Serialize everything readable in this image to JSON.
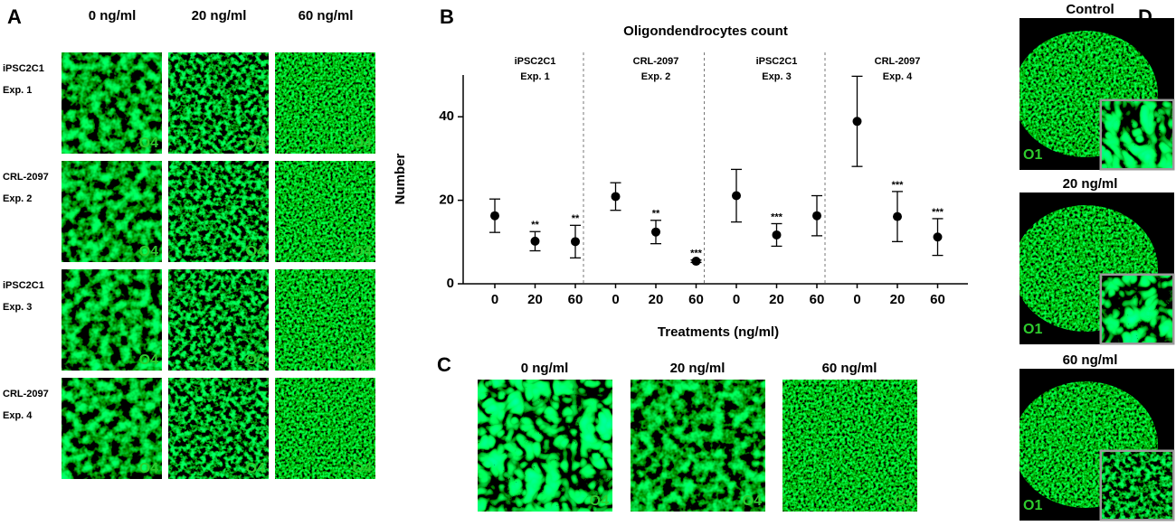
{
  "panel_a": {
    "label": "A",
    "columns": [
      "0 ng/ml",
      "20 ng/ml",
      "60 ng/ml"
    ],
    "rows": [
      {
        "cell_line": "iPSC2C1",
        "experiment": "Exp. 1"
      },
      {
        "cell_line": "CRL-2097",
        "experiment": "Exp. 2"
      },
      {
        "cell_line": "iPSC2C1",
        "experiment": "Exp. 3"
      },
      {
        "cell_line": "CRL-2097",
        "experiment": "Exp. 4"
      }
    ],
    "marker": "O4"
  },
  "chart_data": {
    "type": "errorbar",
    "panel_label": "B",
    "title": "Oligondendrocytes count",
    "x_label": "Treatments (ng/ml)",
    "y_label": "Number",
    "groups": [
      {
        "cell_line": "iPSC2C1",
        "experiment": "Exp. 1"
      },
      {
        "cell_line": "CRL-2097",
        "experiment": "Exp. 2"
      },
      {
        "cell_line": "iPSC2C1",
        "experiment": "Exp. 3"
      },
      {
        "cell_line": "CRL-2097",
        "experiment": "Exp. 4"
      }
    ],
    "categories": [
      "0",
      "20",
      "60",
      "0",
      "20",
      "60",
      "0",
      "20",
      "60",
      "0",
      "20",
      "60"
    ],
    "values": [
      16.3,
      10.2,
      10.1,
      20.9,
      12.4,
      5.4,
      21.1,
      11.7,
      16.3,
      38.9,
      16.1,
      11.2
    ],
    "errors": [
      4.0,
      2.3,
      3.9,
      3.3,
      2.8,
      0.3,
      6.3,
      2.7,
      4.8,
      10.8,
      6.0,
      4.4
    ],
    "significance": [
      null,
      "**",
      "**",
      null,
      "**",
      "***",
      null,
      "***",
      null,
      null,
      "***",
      "***"
    ],
    "color": "#000000",
    "ylim": [
      0,
      50
    ],
    "yticks": [
      0,
      20,
      40
    ]
  },
  "panel_c": {
    "label": "C",
    "columns": [
      "0 ng/ml",
      "20  ng/ml",
      "60 ng/ml"
    ],
    "marker": "O4"
  },
  "panel_d": {
    "label": "D",
    "rows": [
      "Control",
      "20 ng/ml",
      "60 ng/ml"
    ],
    "marker": "O1"
  }
}
